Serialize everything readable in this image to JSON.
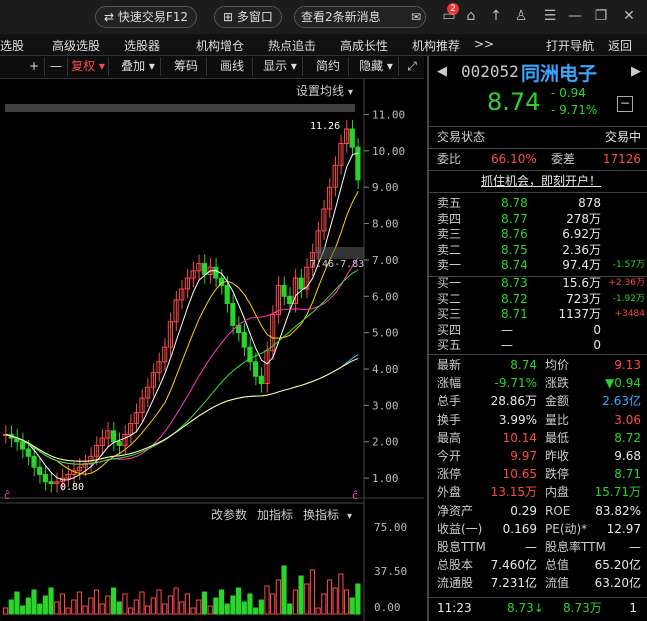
{
  "topbar": {
    "quick_trade": "快速交易F12",
    "multi_window": "多窗口",
    "messages": "查看2条新消息",
    "badge": "2"
  },
  "menu": [
    "选股",
    "高级选股",
    "选股器",
    "机构增仓",
    "热点追击",
    "高成长性",
    "机构推荐",
    ">>",
    "打开导航",
    "返回"
  ],
  "toolbar": [
    "+",
    "—",
    "复权",
    "叠加",
    "筹码",
    "画线",
    "显示",
    "简约",
    "隐藏"
  ],
  "chart_labels": {
    "ma_setting": "设置均线",
    "price_high": "11.26",
    "price_low": "0.80",
    "price_range": "7.46-7.83",
    "sub_tabs": [
      "改参数",
      "加指标",
      "换指标"
    ]
  },
  "chart_data": {
    "type": "candlestick",
    "main_y_ticks": [
      11.0,
      10.0,
      9.0,
      8.0,
      7.0,
      6.0,
      5.0,
      4.0,
      3.0,
      2.0,
      1.0
    ],
    "main_ylim": [
      0.7,
      11.7
    ],
    "volume_y_ticks": [
      "75.00",
      "37.50",
      "0.00"
    ],
    "close_trend": [
      2.2,
      2.1,
      2.0,
      1.8,
      1.6,
      1.3,
      1.1,
      0.9,
      0.85,
      0.9,
      1.0,
      1.1,
      1.2,
      1.3,
      1.4,
      1.6,
      1.9,
      2.1,
      2.3,
      2.0,
      1.9,
      2.2,
      2.5,
      2.8,
      3.2,
      3.5,
      3.9,
      4.2,
      4.6,
      5.3,
      5.9,
      6.2,
      6.5,
      6.7,
      6.9,
      6.6,
      6.8,
      6.5,
      6.3,
      5.8,
      5.2,
      5.0,
      4.6,
      4.2,
      3.8,
      3.6,
      4.5,
      5.5,
      6.3,
      6.0,
      5.8,
      6.5,
      6.2,
      6.8,
      7.2,
      7.8,
      8.4,
      9.0,
      9.6,
      10.2,
      10.6,
      10.1,
      9.2
    ]
  },
  "quote": {
    "code": "002052",
    "name": "同洲电子",
    "price": "8.74",
    "change": "- 0.94",
    "change_pct": "- 9.71%",
    "status_label": "交易状态",
    "status": "交易中",
    "weibi_label": "委比",
    "weibi": "66.10%",
    "weicha_label": "委差",
    "weicha": "17126",
    "ad": "抓住机会，即刻开户！",
    "sells": [
      {
        "label": "卖五",
        "price": "8.78",
        "vol": "878",
        "chg": ""
      },
      {
        "label": "卖四",
        "price": "8.77",
        "vol": "278万",
        "chg": ""
      },
      {
        "label": "卖三",
        "price": "8.76",
        "vol": "6.92万",
        "chg": ""
      },
      {
        "label": "卖二",
        "price": "8.75",
        "vol": "2.36万",
        "chg": ""
      },
      {
        "label": "卖一",
        "price": "8.74",
        "vol": "97.4万",
        "chg": "-1.57万"
      }
    ],
    "buys": [
      {
        "label": "买一",
        "price": "8.73",
        "vol": "15.6万",
        "chg": "+2.36万"
      },
      {
        "label": "买二",
        "price": "8.72",
        "vol": "723万",
        "chg": "-1.92万"
      },
      {
        "label": "买三",
        "price": "8.71",
        "vol": "1137万",
        "chg": "+3484"
      },
      {
        "label": "买四",
        "price": "—",
        "vol": "0",
        "chg": ""
      },
      {
        "label": "买五",
        "price": "—",
        "vol": "0",
        "chg": ""
      }
    ],
    "stats": [
      {
        "l1": "最新",
        "v1": "8.74",
        "c1": "green",
        "l2": "均价",
        "v2": "9.13",
        "c2": "red"
      },
      {
        "l1": "涨幅",
        "v1": "-9.71%",
        "c1": "green",
        "l2": "涨跌",
        "v2": "▼0.94",
        "c2": "green"
      },
      {
        "l1": "总手",
        "v1": "28.86万",
        "c1": "white",
        "l2": "金额",
        "v2": "2.63亿",
        "c2": "cyan"
      },
      {
        "l1": "换手",
        "v1": "3.99%",
        "c1": "white",
        "l2": "量比",
        "v2": "3.06",
        "c2": "red"
      },
      {
        "l1": "最高",
        "v1": "10.14",
        "c1": "red",
        "l2": "最低",
        "v2": "8.72",
        "c2": "green"
      },
      {
        "l1": "今开",
        "v1": "9.97",
        "c1": "red",
        "l2": "昨收",
        "v2": "9.68",
        "c2": "white"
      },
      {
        "l1": "涨停",
        "v1": "10.65",
        "c1": "red",
        "l2": "跌停",
        "v2": "8.71",
        "c2": "green"
      },
      {
        "l1": "外盘",
        "v1": "13.15万",
        "c1": "red",
        "l2": "内盘",
        "v2": "15.71万",
        "c2": "green"
      },
      {
        "l1": "净资产",
        "v1": "0.29",
        "c1": "white",
        "l2": "ROE",
        "v2": "83.82%",
        "c2": "white"
      },
      {
        "l1": "收益(一)",
        "v1": "0.169",
        "c1": "white",
        "l2": "PE(动)*",
        "v2": "12.97",
        "c2": "white"
      },
      {
        "l1": "股息TTM",
        "v1": "—",
        "c1": "white",
        "l2": "股息率TTM",
        "v2": "—",
        "c2": "white"
      },
      {
        "l1": "总股本",
        "v1": "7.460亿",
        "c1": "white",
        "l2": "总值",
        "v2": "65.20亿",
        "c2": "white"
      },
      {
        "l1": "流通股",
        "v1": "7.231亿",
        "c1": "white",
        "l2": "流值",
        "v2": "63.20亿",
        "c2": "white"
      }
    ],
    "tick": {
      "time": "11:23",
      "price": "8.73↓",
      "vol": "8.73万",
      "n": "1"
    }
  },
  "colors": {
    "up": "#ff4a4a",
    "down": "#2bd42b",
    "accent": "#3aa7ff"
  }
}
